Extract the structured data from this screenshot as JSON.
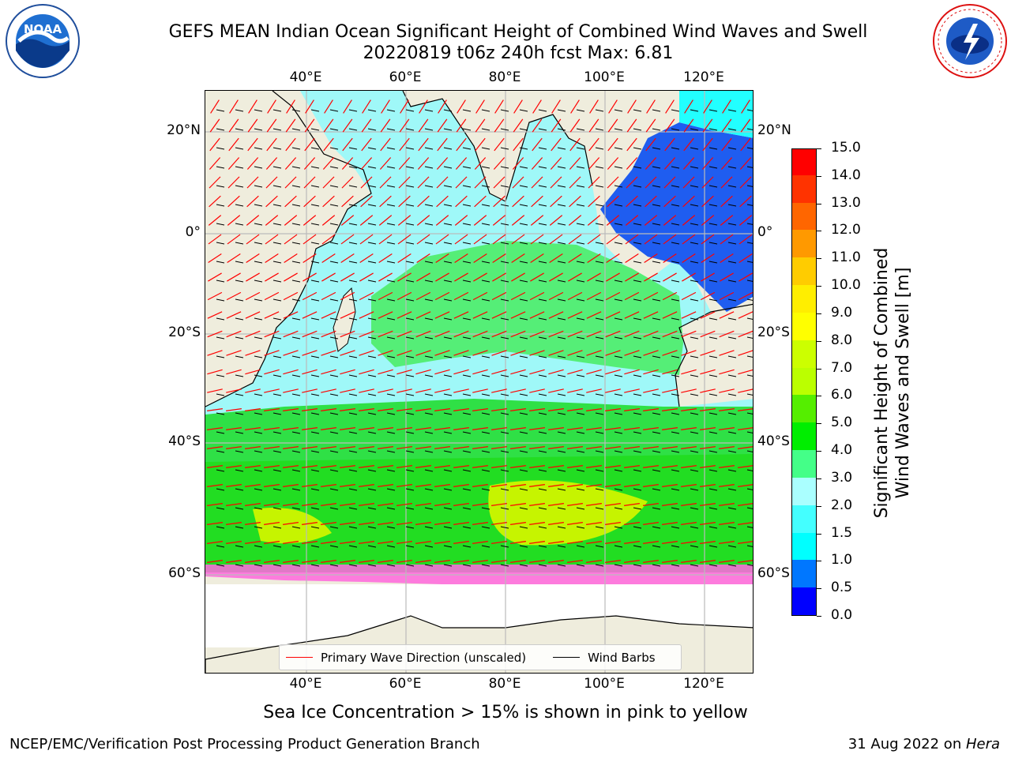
{
  "header": {
    "title_line1": "GEFS MEAN Indian Ocean Significant Height of Combined Wind Waves and Swell",
    "title_line2": "20220819 t06z 240h fcst   Max: 6.81"
  },
  "logos": {
    "left_logo": "NOAA",
    "right_logo": "NATIONAL WEATHER SERVICE"
  },
  "map": {
    "lon_labels": [
      "40°E",
      "60°E",
      "80°E",
      "100°E",
      "120°E"
    ],
    "lat_labels": [
      "20°N",
      "0°",
      "20°S",
      "40°S",
      "60°S"
    ],
    "lon_range": [
      20,
      130
    ],
    "lat_range": [
      -75,
      27
    ],
    "legend": {
      "wave_direction_label": "Primary Wave Direction (unscaled)",
      "wind_barbs_label": "Wind Barbs",
      "wave_direction_color": "#ff0000",
      "wind_barbs_color": "#000000"
    }
  },
  "colorbar": {
    "title_line1": "Significant Height of Combined",
    "title_line2": "Wind Waves and Swell [m]",
    "ticks": [
      "0.0",
      "0.5",
      "1.0",
      "1.5",
      "2.0",
      "3.0",
      "4.0",
      "5.0",
      "6.0",
      "7.0",
      "8.0",
      "9.0",
      "10.0",
      "11.0",
      "12.0",
      "13.0",
      "14.0",
      "15.0"
    ],
    "colors": [
      "#0000ff",
      "#0077ff",
      "#00ffff",
      "#44ffff",
      "#aaffff",
      "#44ff88",
      "#00ee00",
      "#55ee00",
      "#bbff00",
      "#ccff00",
      "#ffff00",
      "#ffee00",
      "#ffcc00",
      "#ff9900",
      "#ff6600",
      "#ff3300",
      "#ff0000"
    ]
  },
  "footer": {
    "sea_ice_note": "Sea Ice Concentration > 15% is shown in pink to yellow",
    "branch": "NCEP/EMC/Verification Post Processing Product Generation Branch",
    "date": "31 Aug 2022 on ",
    "host": "Hera"
  }
}
